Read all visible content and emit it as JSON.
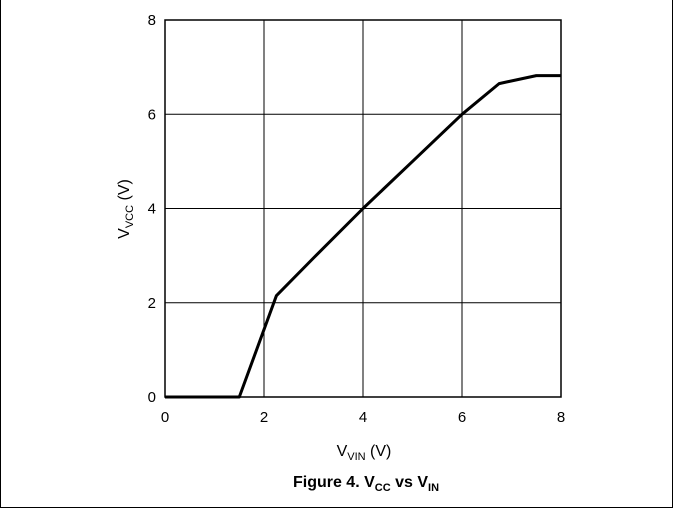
{
  "chart_data": {
    "type": "line",
    "title": "",
    "xlabel": {
      "main": "V",
      "sub": "VIN",
      "unit": " (V)"
    },
    "ylabel": {
      "main": "V",
      "sub": "VCC",
      "unit": " (V)"
    },
    "xlim": [
      0,
      8
    ],
    "ylim": [
      0,
      8
    ],
    "x_ticks": [
      "0",
      "2",
      "4",
      "6",
      "8"
    ],
    "y_ticks": [
      "0",
      "2",
      "4",
      "6",
      "8"
    ],
    "grid": true,
    "series": [
      {
        "color": "#000000",
        "x": [
          0,
          1.5,
          2.25,
          3.0,
          4.0,
          5.0,
          6.0,
          6.75,
          7.5,
          8.0
        ],
        "y": [
          0,
          0,
          2.15,
          2.95,
          4.0,
          5.0,
          6.0,
          6.65,
          6.82,
          6.82
        ]
      }
    ]
  },
  "caption": {
    "prefix": "Figure 4. V",
    "sub1": "CC",
    "middle": " vs V",
    "sub2": "IN"
  }
}
